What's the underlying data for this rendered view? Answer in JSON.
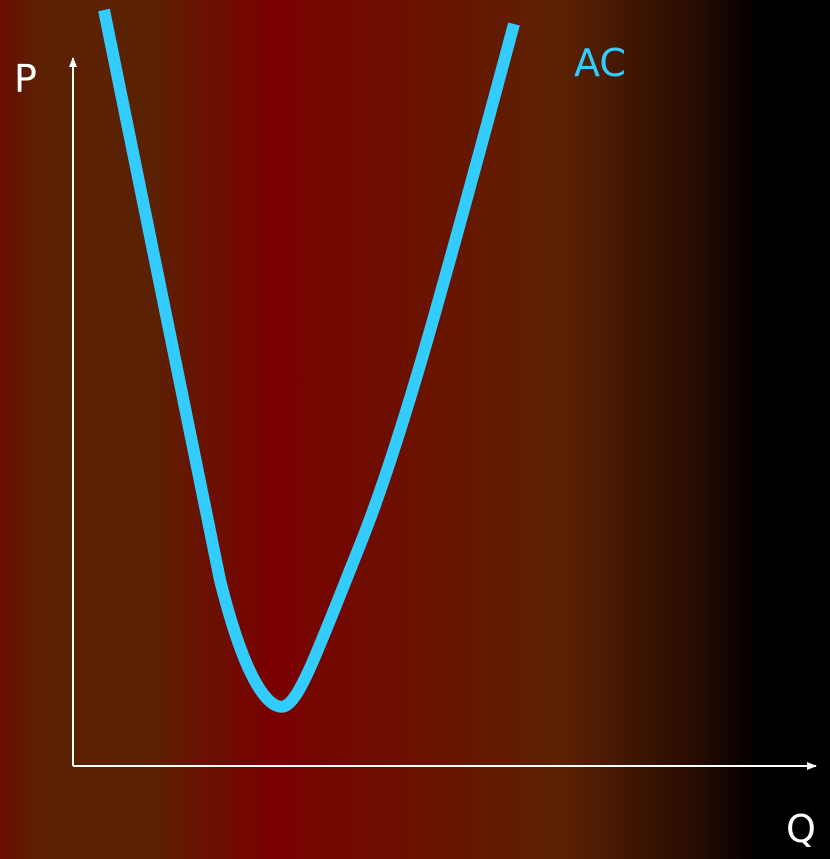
{
  "axes": {
    "y_label": "P",
    "x_label": "Q"
  },
  "curve": {
    "label": "AC",
    "shape": "U-shaped",
    "color": "#33ccff"
  },
  "colors": {
    "axis": "#ffffff",
    "label": "#ffffff",
    "curve": "#33ccff",
    "background_left": "#6a0d00",
    "background_mid": "#7a0000",
    "background_right": "#000000"
  }
}
